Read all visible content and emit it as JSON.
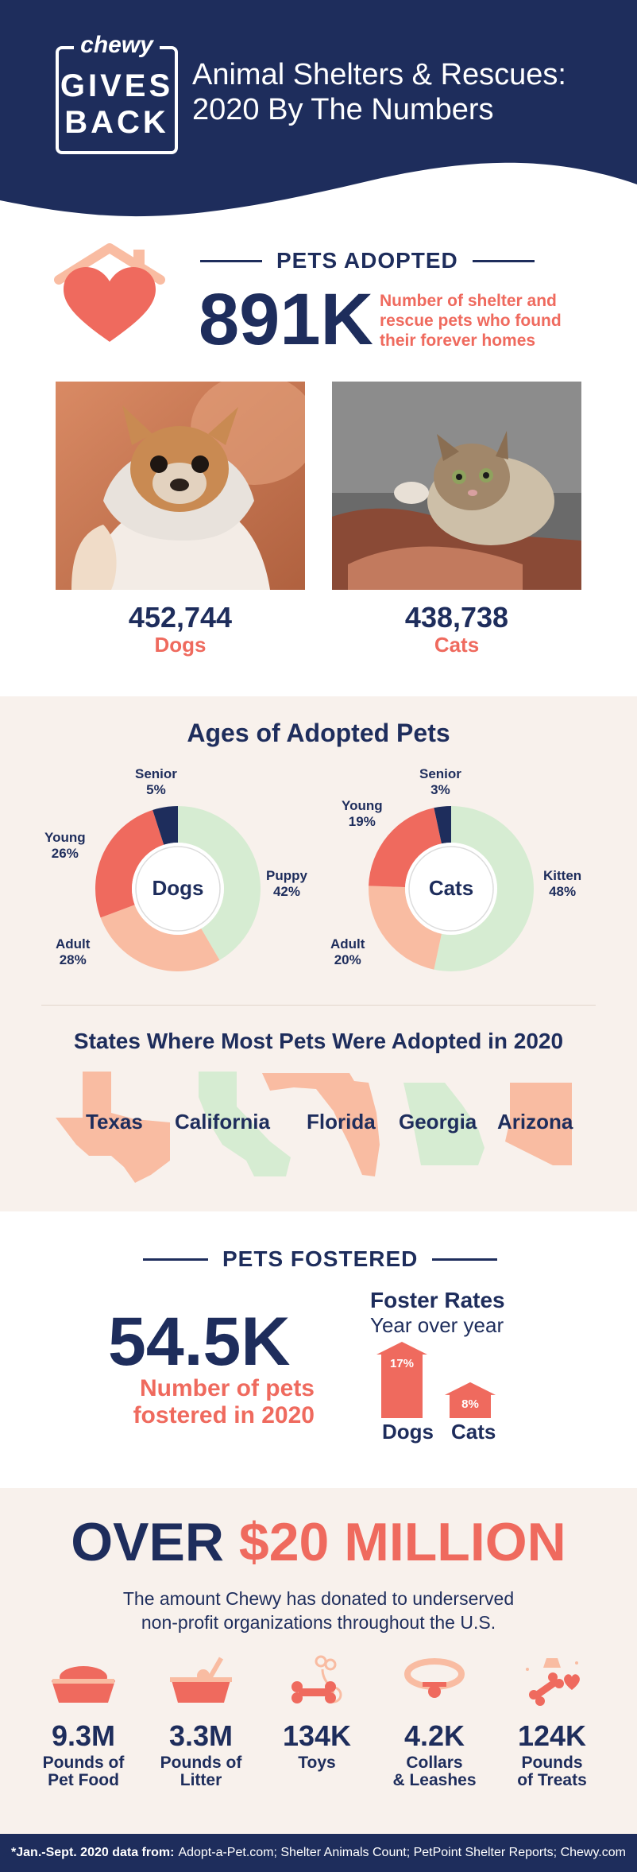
{
  "header": {
    "brand": "chewy",
    "logo_line1": "GIVES",
    "logo_line2": "BACK",
    "title_line1": "Animal Shelters & Rescues:",
    "title_line2": "2020 By The Numbers"
  },
  "adopted": {
    "heading": "PETS ADOPTED",
    "total": "891K",
    "description": "Number of shelter and rescue pets who found their forever homes",
    "dogs_count": "452,744",
    "dogs_label": "Dogs",
    "cats_count": "438,738",
    "cats_label": "Cats"
  },
  "ages": {
    "heading": "Ages of Adopted Pets",
    "dogs": {
      "center": "Dogs",
      "segments": [
        {
          "name": "Puppy",
          "value": 42,
          "label": "42%",
          "color": "#d6ecd2"
        },
        {
          "name": "Adult",
          "value": 28,
          "label": "28%",
          "color": "#f9bca2"
        },
        {
          "name": "Young",
          "value": 26,
          "label": "26%",
          "color": "#ef6a5e"
        },
        {
          "name": "Senior",
          "value": 5,
          "label": "5%",
          "color": "#1e2d5c"
        }
      ]
    },
    "cats": {
      "center": "Cats",
      "segments": [
        {
          "name": "Kitten",
          "value": 48,
          "label": "48%",
          "color": "#d6ecd2"
        },
        {
          "name": "Adult",
          "value": 20,
          "label": "20%",
          "color": "#f9bca2"
        },
        {
          "name": "Young",
          "value": 19,
          "label": "19%",
          "color": "#ef6a5e"
        },
        {
          "name": "Senior",
          "value": 3,
          "label": "3%",
          "color": "#1e2d5c"
        }
      ]
    }
  },
  "states": {
    "heading": "States Where Most Pets Were Adopted in 2020",
    "names": [
      "Texas",
      "California",
      "Florida",
      "Georgia",
      "Arizona"
    ]
  },
  "fostered": {
    "heading": "PETS FOSTERED",
    "total": "54.5K",
    "description_line1": "Number of pets",
    "description_line2": "fostered in 2020",
    "rates_title": "Foster Rates",
    "rates_subtitle": "Year over year",
    "dogs_rate": "17%",
    "dogs_value": 17,
    "dogs_label": "Dogs",
    "cats_rate": "8%",
    "cats_value": 8,
    "cats_label": "Cats"
  },
  "donation": {
    "prefix": "OVER",
    "amount": "$20 MILLION",
    "description_line1": "The amount Chewy has donated to underserved",
    "description_line2": "non-profit organizations throughout the U.S.",
    "items": [
      {
        "icon": "pet-food-bowl-icon",
        "value": "9.3M",
        "label_line1": "Pounds of",
        "label_line2": "Pet Food"
      },
      {
        "icon": "litter-box-icon",
        "value": "3.3M",
        "label_line1": "Pounds of",
        "label_line2": "Litter"
      },
      {
        "icon": "toys-icon",
        "value": "134K",
        "label_line1": "Toys",
        "label_line2": ""
      },
      {
        "icon": "collar-icon",
        "value": "4.2K",
        "label_line1": "Collars",
        "label_line2": "& Leashes"
      },
      {
        "icon": "treats-icon",
        "value": "124K",
        "label_line1": "Pounds",
        "label_line2": "of Treats"
      }
    ]
  },
  "footer": {
    "source_label": "*Jan.-Sept. 2020 data from:",
    "sources": "Adopt-a-Pet.com; Shelter Animals Count; PetPoint Shelter Reports; Chewy.com"
  },
  "colors": {
    "navy": "#1e2d5c",
    "coral": "#ef6a5e",
    "peach": "#f9bca2",
    "mint": "#d6ecd2",
    "beige": "#f8f1ec"
  }
}
